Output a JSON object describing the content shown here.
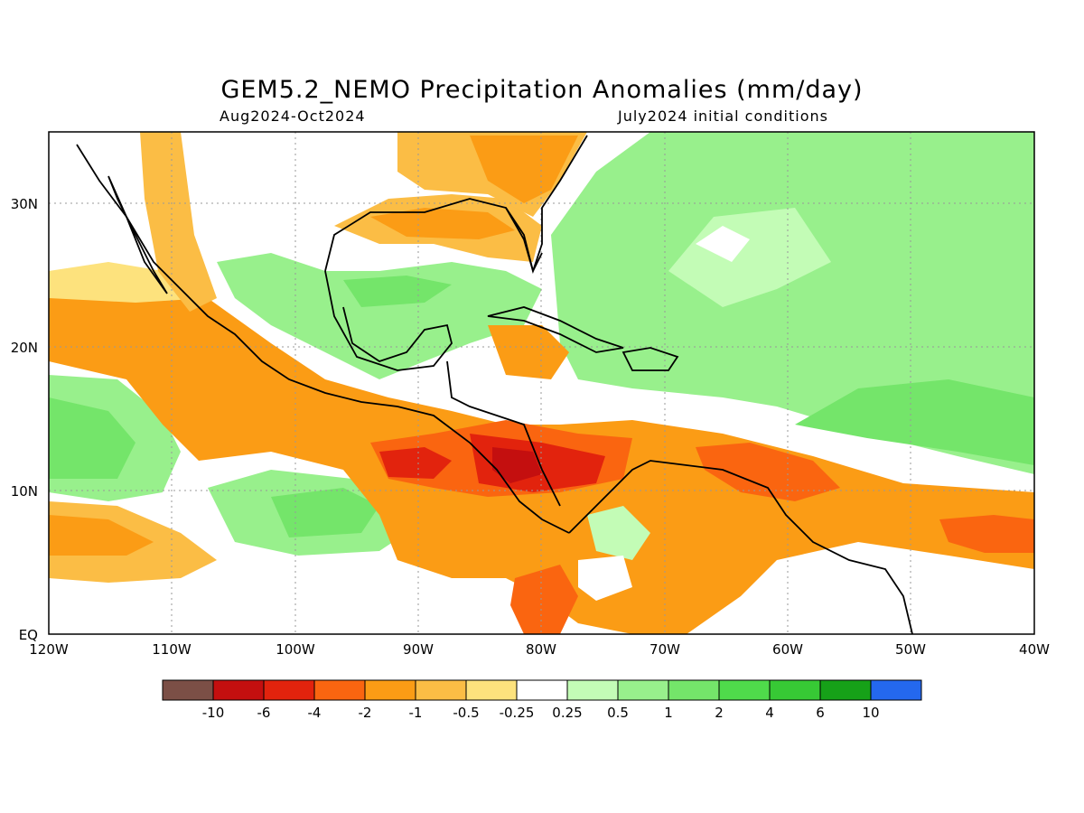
{
  "title": "GEM5.2_NEMO Precipitation Anomalies (mm/day)",
  "subtitle_left": "Aug2024-Oct2024",
  "subtitle_right": "July2024 initial conditions",
  "map": {
    "lon_range": [
      -120,
      -40
    ],
    "lat_range": [
      0,
      35
    ],
    "lon_ticks": [
      "120W",
      "110W",
      "100W",
      "90W",
      "80W",
      "70W",
      "60W",
      "50W",
      "40W"
    ],
    "lat_ticks": [
      "EQ",
      "10N",
      "20N",
      "30N"
    ],
    "grid": "dotted"
  },
  "colorbar": {
    "labels": [
      "-10",
      "-6",
      "-4",
      "-2",
      "-1",
      "-0.5",
      "-0.25",
      "0.25",
      "0.5",
      "1",
      "2",
      "4",
      "6",
      "10"
    ],
    "colors": [
      "#7b4f46",
      "#c40f0f",
      "#e2230d",
      "#fa6510",
      "#fb9c15",
      "#fbbd45",
      "#fde27d",
      "#ffffff",
      "#c3fcb6",
      "#98f08c",
      "#74e56a",
      "#4fdb4b",
      "#37c935",
      "#16a118",
      "#2468ee"
    ]
  },
  "colors": {
    "dry_strong": "#c40f0f",
    "dry": "#fa6510",
    "moderate_dry": "#fb9c15",
    "weak_dry": "#fde27d",
    "wet": "#98f08c",
    "wet_strong": "#4fdb4b"
  }
}
